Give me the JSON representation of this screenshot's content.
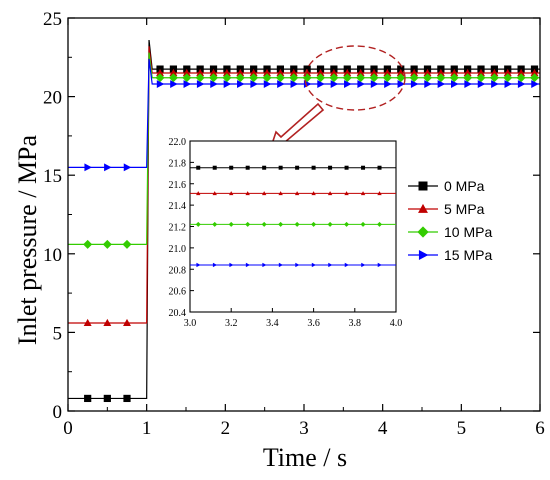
{
  "chart_data": [
    {
      "type": "line",
      "xlabel": "Time  / s",
      "ylabel": "Inlet pressure / MPa",
      "xlim": [
        0,
        6
      ],
      "ylim": [
        0,
        25
      ],
      "xticks": [
        0,
        1,
        2,
        3,
        4,
        5,
        6
      ],
      "yticks": [
        0,
        5,
        10,
        15,
        20,
        25
      ],
      "grid": false,
      "legend": "center-right",
      "step_time": 1.0,
      "spike_peak": 23.6,
      "series": [
        {
          "name": "0 MPa",
          "color": "#000000",
          "marker": "square",
          "initial": 0.8,
          "final": 21.75
        },
        {
          "name": "5 MPa",
          "color": "#c00000",
          "marker": "triangle-up",
          "initial": 5.6,
          "final": 21.5
        },
        {
          "name": "10 MPa",
          "color": "#33cc00",
          "marker": "diamond",
          "initial": 10.6,
          "final": 21.2
        },
        {
          "name": "15 MPa",
          "color": "#0000ff",
          "marker": "triangle-right",
          "initial": 15.5,
          "final": 20.8
        }
      ]
    },
    {
      "type": "line",
      "inset": true,
      "xlim": [
        3.0,
        4.0
      ],
      "ylim": [
        20.4,
        22.0
      ],
      "xticks": [
        "3.0",
        "3.2",
        "3.4",
        "3.6",
        "3.8",
        "4.0"
      ],
      "yticks": [
        "20.4",
        "20.6",
        "20.8",
        "21.0",
        "21.2",
        "21.4",
        "21.6",
        "21.8",
        "22.0"
      ],
      "series": [
        {
          "name": "0 MPa",
          "value": 21.75
        },
        {
          "name": "5 MPa",
          "value": 21.51
        },
        {
          "name": "10 MPa",
          "value": 21.22
        },
        {
          "name": "15 MPa",
          "value": 20.84
        }
      ]
    }
  ]
}
